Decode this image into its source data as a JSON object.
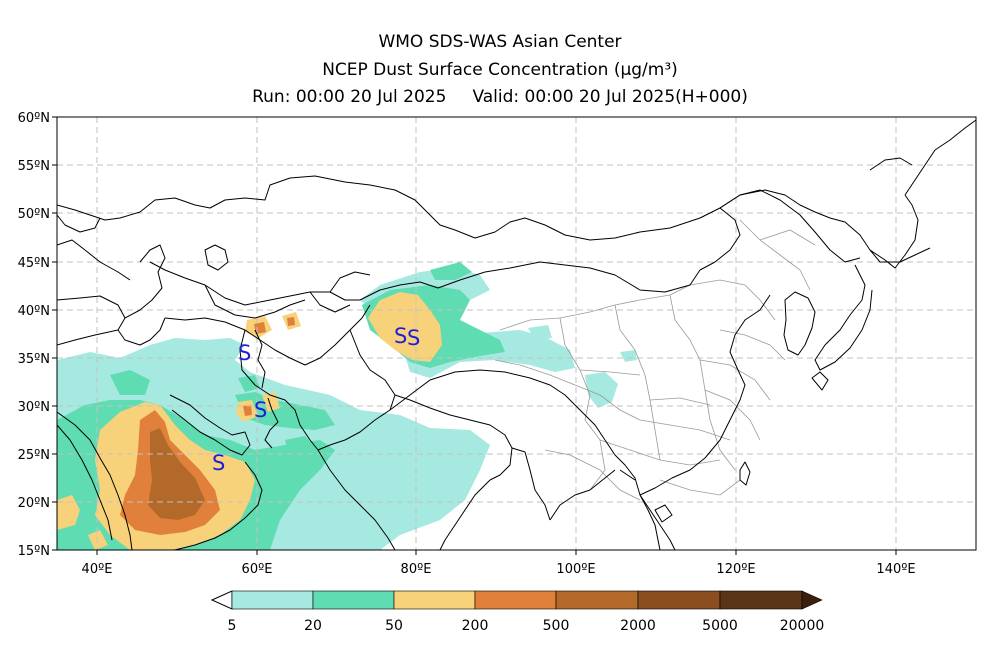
{
  "title": {
    "line1": "WMO SDS-WAS Asian Center",
    "line2": "NCEP Dust Surface Concentration",
    "unit": "(μg/m³)",
    "run": "Run: 00:00 20 Jul 2025",
    "valid": "Valid: 00:00 20 Jul 2025(H+000)"
  },
  "map": {
    "lat_labels": [
      "60ºN",
      "55ºN",
      "50ºN",
      "45ºN",
      "40ºN",
      "35ºN",
      "30ºN",
      "25ºN",
      "20ºN",
      "15ºN"
    ],
    "lon_labels": [
      "40ºE",
      "60ºE",
      "80ºE",
      "100ºE",
      "120ºE",
      "140ºE"
    ],
    "lat_range": [
      15,
      60
    ],
    "lon_range": [
      35,
      150
    ],
    "grid": "dashed",
    "dust_storm_symbol": "S",
    "colors": {
      "coast": "#000000",
      "province": "#9a9a9a",
      "grid": "#bdbdbd"
    }
  },
  "colorbar": {
    "labels": [
      "5",
      "20",
      "50",
      "200",
      "500",
      "2000",
      "5000",
      "20000"
    ],
    "colors": [
      "#a6e9e0",
      "#5fdcb2",
      "#f8d27a",
      "#e0803a",
      "#b2692a",
      "#8a4e1f",
      "#5a3416",
      "#3a200c"
    ]
  }
}
